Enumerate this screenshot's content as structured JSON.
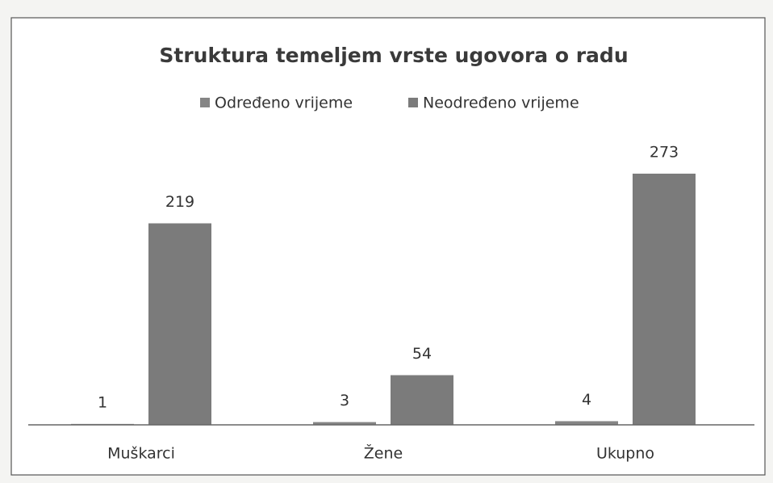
{
  "chart_data": {
    "type": "bar",
    "title": "Struktura temeljem vrste ugovora o radu",
    "categories": [
      "Muškarci",
      "Žene",
      "Ukupno"
    ],
    "series": [
      {
        "name": "Određeno vrijeme",
        "color": "#858585",
        "values": [
          1,
          3,
          4
        ]
      },
      {
        "name": "Neodređeno vrijeme",
        "color": "#7b7b7b",
        "values": [
          219,
          54,
          273
        ]
      }
    ],
    "legend": "top"
  }
}
